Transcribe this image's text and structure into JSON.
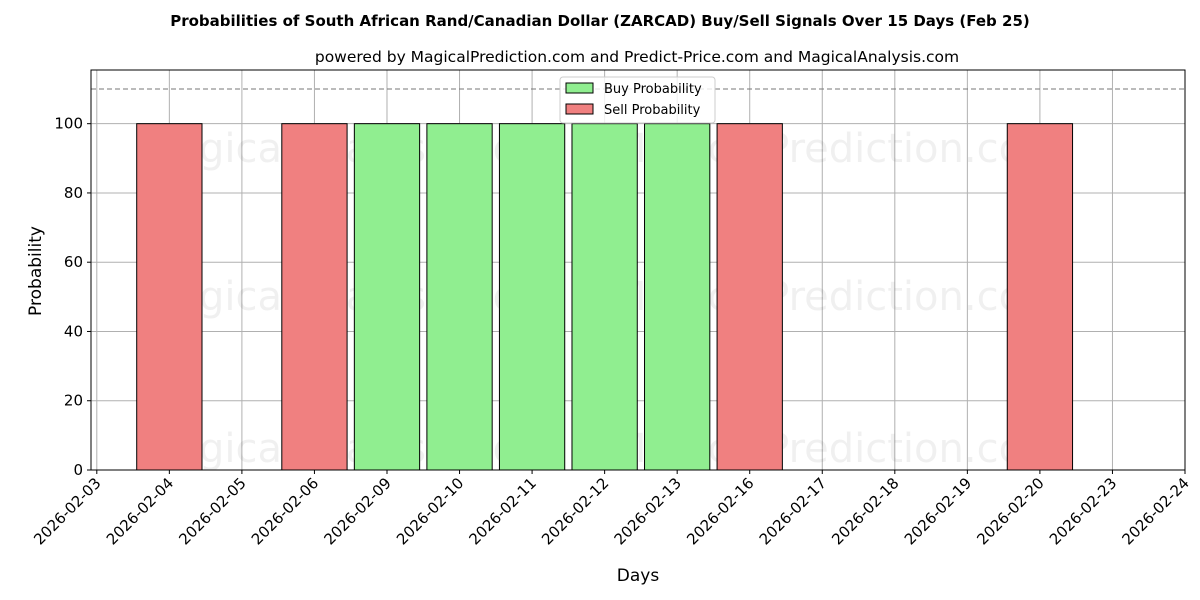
{
  "chart_data": {
    "type": "bar",
    "title": "Probabilities of South African Rand/Canadian Dollar (ZARCAD) Buy/Sell Signals Over 15 Days (Feb 25)",
    "subtitle": "powered by MagicalPrediction.com and Predict-Price.com and MagicalAnalysis.com",
    "xlabel": "Days",
    "ylabel": "Probability",
    "ylim": [
      0,
      115.5
    ],
    "yticks": [
      0,
      20,
      40,
      60,
      80,
      100
    ],
    "threshold_line": 110,
    "grid": true,
    "legend_position": "top-center",
    "categories": [
      "2026-02-03",
      "2026-02-04",
      "2026-02-05",
      "2026-02-06",
      "2026-02-09",
      "2026-02-10",
      "2026-02-11",
      "2026-02-12",
      "2026-02-13",
      "2026-02-16",
      "2026-02-17",
      "2026-02-18",
      "2026-02-19",
      "2026-02-20",
      "2026-02-23",
      "2026-02-24"
    ],
    "series": [
      {
        "name": "Buy Probability",
        "color": "#90ee90",
        "values": [
          0,
          0,
          0,
          0,
          100,
          100,
          100,
          100,
          100,
          0,
          0,
          0,
          0,
          0,
          0,
          0
        ]
      },
      {
        "name": "Sell Probability",
        "color": "#f08080",
        "values": [
          0,
          100,
          0,
          100,
          0,
          0,
          0,
          0,
          0,
          100,
          0,
          0,
          0,
          100,
          0,
          0
        ]
      }
    ],
    "watermarks": [
      "MagicalAnalysis.com",
      "MagicalPrediction.com"
    ]
  }
}
